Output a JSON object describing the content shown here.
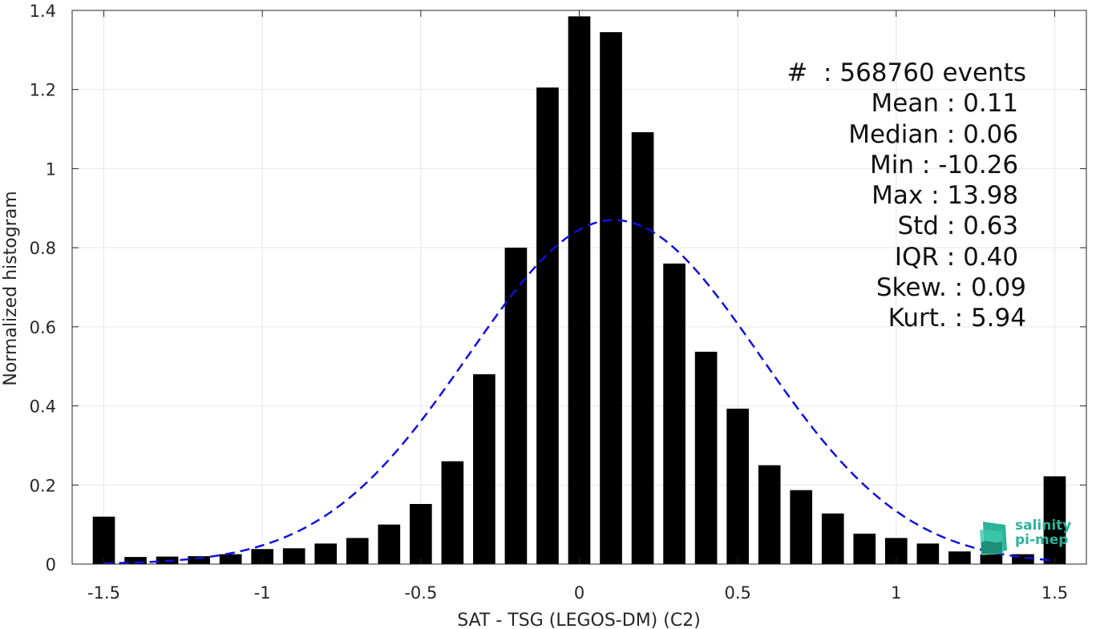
{
  "chart_data": {
    "type": "bar",
    "title": "",
    "xlabel": "SAT - TSG (LEGOS-DM) (C2)",
    "ylabel": "Normalized histogram",
    "xlim": [
      -1.6,
      1.6
    ],
    "ylim": [
      0,
      1.4
    ],
    "grid": true,
    "xticks": [
      "-1.5",
      "-1",
      "-0.5",
      "0",
      "0.5",
      "1",
      "1.5"
    ],
    "yticks": [
      "0",
      "0.2",
      "0.4",
      "0.6",
      "0.8",
      "1",
      "1.2",
      "1.4"
    ],
    "bin_width": 0.1,
    "bar_width": 0.07,
    "x": [
      -1.5,
      -1.4,
      -1.3,
      -1.2,
      -1.1,
      -1.0,
      -0.9,
      -0.8,
      -0.7,
      -0.6,
      -0.5,
      -0.4,
      -0.3,
      -0.2,
      -0.1,
      0.0,
      0.1,
      0.2,
      0.3,
      0.4,
      0.5,
      0.6,
      0.7,
      0.8,
      0.9,
      1.0,
      1.1,
      1.2,
      1.3,
      1.4,
      1.5
    ],
    "values": [
      0.12,
      0.018,
      0.019,
      0.02,
      0.025,
      0.038,
      0.04,
      0.052,
      0.066,
      0.1,
      0.152,
      0.26,
      0.48,
      0.8,
      1.205,
      1.385,
      1.345,
      1.092,
      0.76,
      0.537,
      0.393,
      0.25,
      0.187,
      0.128,
      0.077,
      0.066,
      0.052,
      0.032,
      0.025,
      0.025,
      0.222
    ],
    "fit_curve": {
      "style": "dashed",
      "color": "#1010e0",
      "mean": 0.11,
      "std": 0.46,
      "peak": 0.87,
      "x_range": [
        -1.5,
        1.5
      ]
    },
    "bar_color": "#000000"
  },
  "stats": {
    "lines": [
      "#  : 568760 events",
      "Mean : 0.11 ",
      "Median : 0.06 ",
      "Min : -10.26 ",
      "Max : 13.98 ",
      "Std : 0.63 ",
      "IQR : 0.40 ",
      "Skew. : 0.09",
      "Kurt. : 5.94"
    ]
  },
  "logo": {
    "line1": "salinity",
    "line2": "pi-mep",
    "icon": "salinity-logo-icon",
    "color": "#2bb39a"
  }
}
